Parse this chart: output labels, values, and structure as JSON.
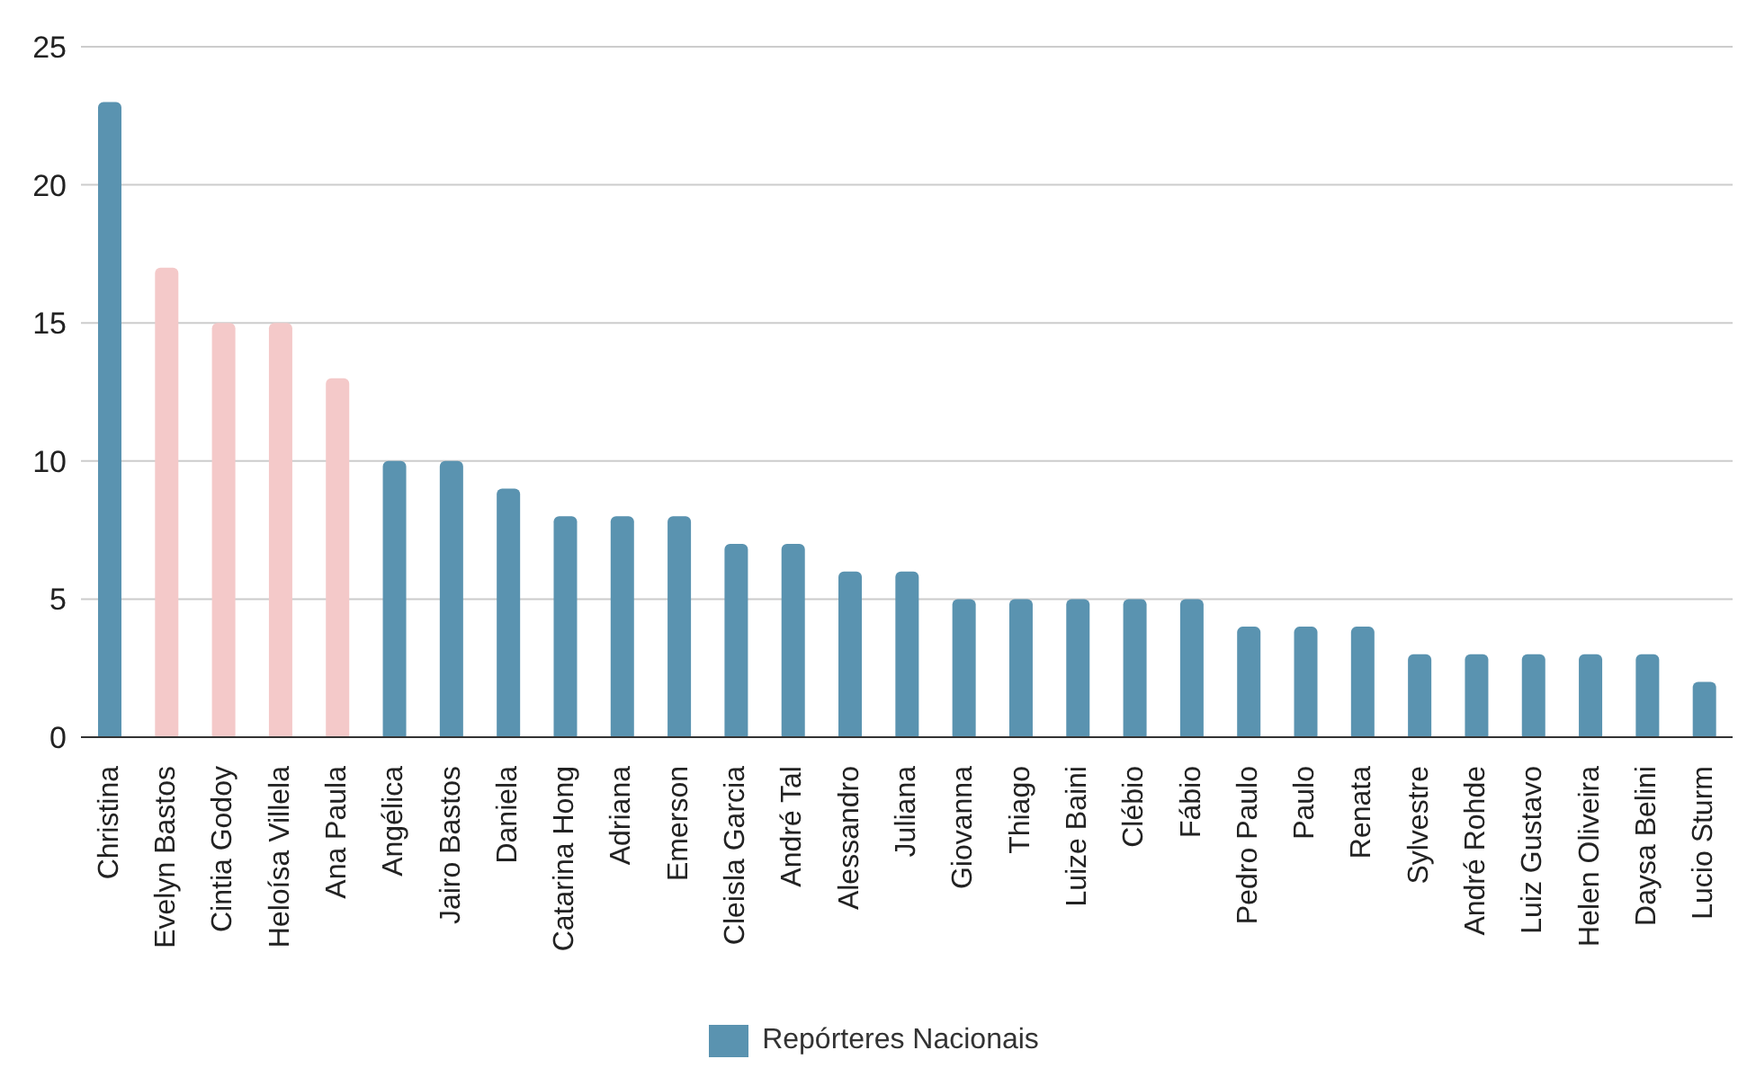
{
  "chart_data": {
    "type": "bar",
    "categories": [
      "Christina",
      "Evelyn Bastos",
      "Cintia Godoy",
      "Heloísa Villela",
      "Ana Paula",
      "Angélica",
      "Jairo Bastos",
      "Daniela",
      "Catarina Hong",
      "Adriana",
      "Emerson",
      "Cleisla Garcia",
      "André Tal",
      "Alessandro",
      "Juliana",
      "Giovanna",
      "Thiago",
      "Luize Baini",
      "Clébio",
      "Fábio",
      "Pedro Paulo",
      "Paulo",
      "Renata",
      "Sylvestre",
      "André Rohde",
      "Luiz Gustavo",
      "Helen Oliveira",
      "Daysa Belini",
      "Lucio Sturm"
    ],
    "series": [
      {
        "name": "Repórteres Nacionais",
        "color": "#5a93b0",
        "values": [
          23,
          17,
          15,
          15,
          13,
          10,
          10,
          9,
          8,
          8,
          8,
          7,
          7,
          6,
          6,
          5,
          5,
          5,
          5,
          5,
          4,
          4,
          4,
          3,
          3,
          3,
          3,
          3,
          2
        ],
        "colors": [
          "#5a93b0",
          "#f4c9c9",
          "#f4c9c9",
          "#f4c9c9",
          "#f4c9c9",
          "#5a93b0",
          "#5a93b0",
          "#5a93b0",
          "#5a93b0",
          "#5a93b0",
          "#5a93b0",
          "#5a93b0",
          "#5a93b0",
          "#5a93b0",
          "#5a93b0",
          "#5a93b0",
          "#5a93b0",
          "#5a93b0",
          "#5a93b0",
          "#5a93b0",
          "#5a93b0",
          "#5a93b0",
          "#5a93b0",
          "#5a93b0",
          "#5a93b0",
          "#5a93b0",
          "#5a93b0",
          "#5a93b0",
          "#5a93b0"
        ]
      }
    ],
    "ylim": [
      0,
      25
    ],
    "yticks": [
      0,
      5,
      10,
      15,
      20,
      25
    ],
    "grid": "y",
    "legend": "bottom"
  }
}
